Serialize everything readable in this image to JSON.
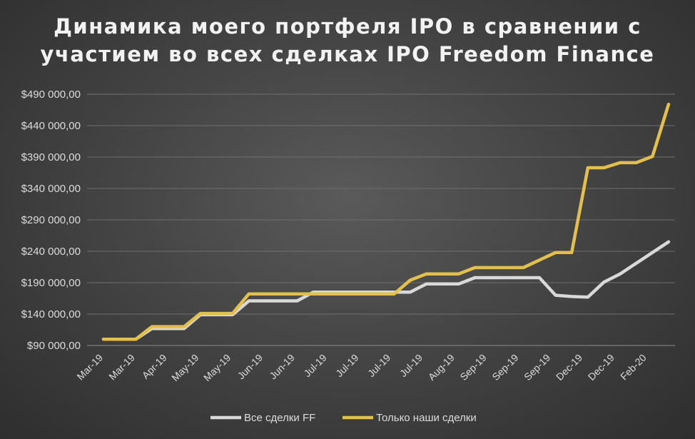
{
  "chart_data": {
    "type": "line",
    "title_lines": [
      "Динамика моего портфеля IPO в сравнении с",
      "участием во всех сделках IPO Freedom Finance"
    ],
    "y_ticks": [
      90000,
      140000,
      190000,
      240000,
      290000,
      340000,
      390000,
      440000,
      490000
    ],
    "y_tick_labels": [
      "$90 000,00",
      "$140 000,00",
      "$190 000,00",
      "$240 000,00",
      "$290 000,00",
      "$340 000,00",
      "$390 000,00",
      "$440 000,00",
      "$490 000,00"
    ],
    "ylim": [
      90000,
      490000
    ],
    "x_tick_labels": [
      "Mar-19",
      "Mar-19",
      "Apr-19",
      "May-19",
      "May-19",
      "Jun-19",
      "Jun-19",
      "Jul-19",
      "Jul-19",
      "Jul-19",
      "Jul-19",
      "Aug-19",
      "Sep-19",
      "Sep-19",
      "Sep-19",
      "Dec-19",
      "Dec-19",
      "Feb-20"
    ],
    "grid": true,
    "legend_position": "bottom",
    "series": [
      {
        "name": "Все сделки FF",
        "color": "#d9d9d9",
        "values": [
          100000,
          100000,
          100000,
          117000,
          117000,
          117000,
          139000,
          139000,
          139000,
          161000,
          161000,
          161000,
          161000,
          175000,
          175000,
          175000,
          175000,
          175000,
          175000,
          175000,
          188000,
          188000,
          188000,
          198000,
          198000,
          198000,
          198000,
          198000,
          170000,
          168000,
          167000,
          191000,
          204000,
          221000,
          238000,
          255000
        ]
      },
      {
        "name": "Только наши сделки",
        "color": "#e3c04e",
        "values": [
          100000,
          100000,
          100000,
          120000,
          120000,
          120000,
          141000,
          141000,
          141000,
          172000,
          172000,
          172000,
          172000,
          172000,
          172000,
          172000,
          172000,
          172000,
          172000,
          194000,
          204000,
          204000,
          204000,
          214000,
          214000,
          214000,
          214000,
          226000,
          238000,
          238000,
          373000,
          373000,
          381000,
          381000,
          391000,
          474000
        ]
      }
    ]
  }
}
